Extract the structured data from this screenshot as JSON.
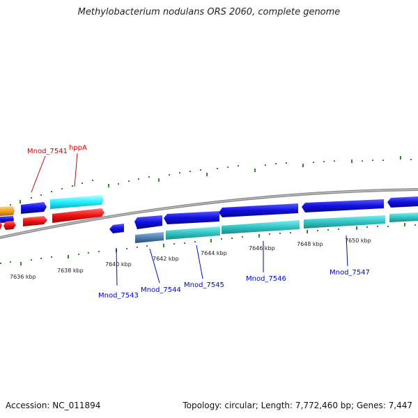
{
  "title": "Methylobacterium nodulans ORS 2060, complete genome",
  "footer": {
    "accession": "Accession: NC_011894",
    "summary": "Topology: circular; Length: 7,772,460 bp; Genes: 7,447"
  },
  "colors": {
    "forward_cds": "#1a1ae6",
    "reverse_cds": "#3cc9c9",
    "rna_or_pseudo_red": "#ee1111",
    "misc_orange": "#f3a020",
    "steelblue_gene": "#4f7fb0",
    "backbone": "#8a8a8a",
    "tick_green": "#2a8a2a",
    "label_red": "#cc0000",
    "label_blue": "#0000cc"
  },
  "kbp_ticks": [
    {
      "label": "7636 kbp"
    },
    {
      "label": "7638 kbp"
    },
    {
      "label": "7640 kbp"
    },
    {
      "label": "7642 kbp"
    },
    {
      "label": "7644 kbp"
    },
    {
      "label": "7646 kbp"
    },
    {
      "label": "7648 kbp"
    },
    {
      "label": "7650 kbp"
    }
  ],
  "gene_labels": [
    {
      "text": "Mnod_7541",
      "color": "red"
    },
    {
      "text": "hppA",
      "color": "red"
    },
    {
      "text": "Mnod_7543",
      "color": "blue"
    },
    {
      "text": "Mnod_7544",
      "color": "blue"
    },
    {
      "text": "Mnod_7545",
      "color": "blue"
    },
    {
      "text": "Mnod_7546",
      "color": "blue"
    },
    {
      "text": "Mnod_7547",
      "color": "blue"
    }
  ]
}
